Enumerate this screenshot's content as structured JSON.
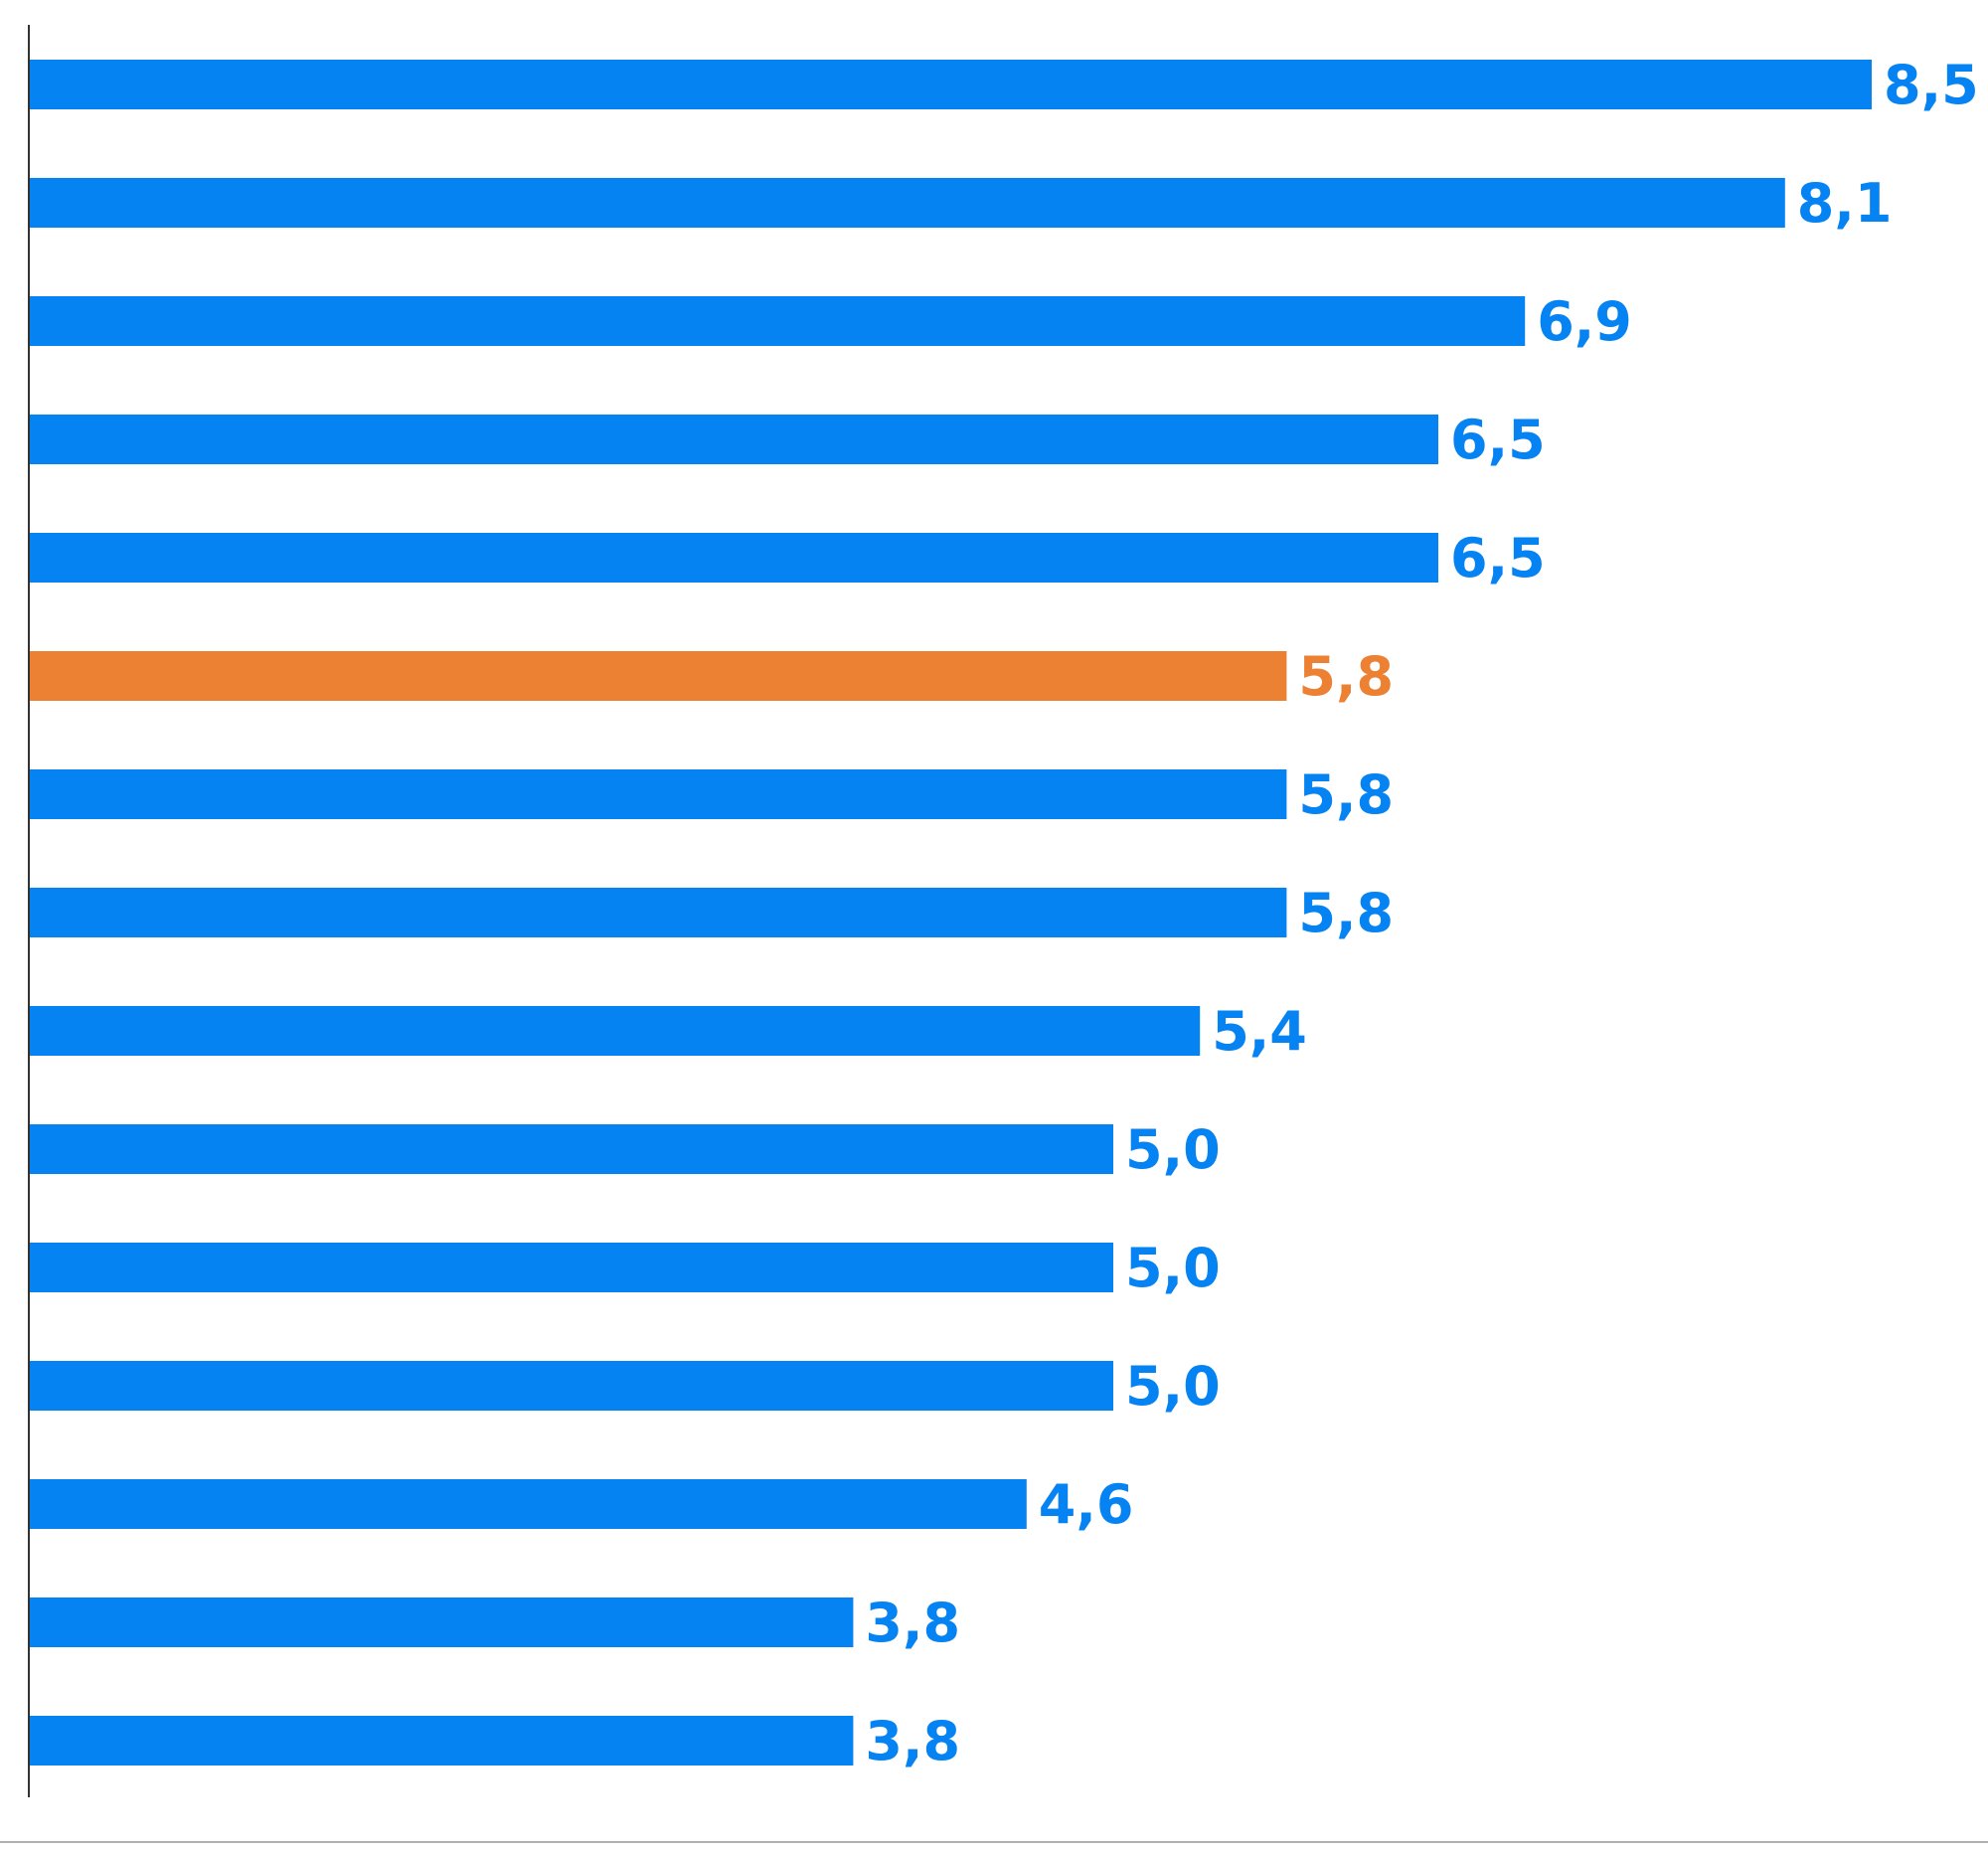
{
  "chart_data": {
    "type": "bar",
    "orientation": "horizontal",
    "values": [
      8.5,
      8.1,
      6.9,
      6.5,
      6.5,
      5.8,
      5.8,
      5.8,
      5.4,
      5.0,
      5.0,
      5.0,
      4.6,
      3.8,
      3.8
    ],
    "labels": [
      "8,5",
      "8,1",
      "6,9",
      "6,5",
      "6,5",
      "5,8",
      "5,8",
      "5,8",
      "5,4",
      "5,0",
      "5,0",
      "5,0",
      "4,6",
      "3,8",
      "3,8"
    ],
    "highlight_index": 5,
    "colors": {
      "default": "#0683f2",
      "highlight": "#ec8033"
    },
    "xlim": [
      0,
      8.5
    ],
    "grid": false,
    "legend": "none"
  }
}
